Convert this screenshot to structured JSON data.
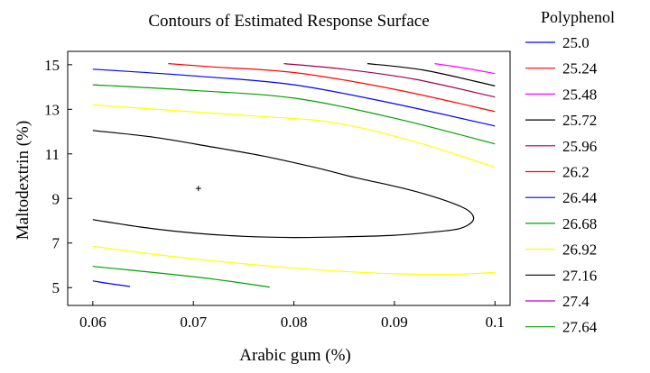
{
  "chart_data": {
    "type": "contour",
    "title": "Contours of Estimated Response Surface",
    "xlabel": "Arabic gum (%)",
    "ylabel": "Maltodextrin (%)",
    "xlim": [
      0.0575,
      0.1015
    ],
    "ylim": [
      4.2,
      15.6
    ],
    "xticks": [
      "0.06",
      "0.07",
      "0.08",
      "0.09",
      "0.1"
    ],
    "xtick_values": [
      0.06,
      0.07,
      0.08,
      0.09,
      0.1
    ],
    "yticks": [
      "5",
      "7",
      "9",
      "11",
      "13",
      "15"
    ],
    "ytick_values": [
      5,
      7,
      9,
      11,
      13,
      15
    ],
    "legend": {
      "title": "Polyphenol",
      "placement": "right",
      "entries": [
        {
          "label": "25.0",
          "color": "#0000ff"
        },
        {
          "label": "25.24",
          "color": "#ff0000"
        },
        {
          "label": "25.48",
          "color": "#ff00ff"
        },
        {
          "label": "25.72",
          "color": "#000000"
        },
        {
          "label": "25.96",
          "color": "#a00050"
        },
        {
          "label": "26.2",
          "color": "#ff0000"
        },
        {
          "label": "26.44",
          "color": "#0000ff"
        },
        {
          "label": "26.68",
          "color": "#00a000"
        },
        {
          "label": "26.92",
          "color": "#ffff00"
        },
        {
          "label": "27.16",
          "color": "#000000"
        },
        {
          "label": "27.4",
          "color": "#c000c0"
        },
        {
          "label": "27.64",
          "color": "#00a000"
        }
      ]
    },
    "contours": [
      {
        "level": 25.0,
        "color": "#0000ff",
        "points": [
          [
            0.06,
            5.3
          ],
          [
            0.0618,
            5.17
          ],
          [
            0.0637,
            5.05
          ]
        ]
      },
      {
        "level": 26.68,
        "color": "#00a000",
        "points": [
          [
            0.06,
            5.95
          ],
          [
            0.066,
            5.68
          ],
          [
            0.072,
            5.38
          ],
          [
            0.0776,
            5.02
          ]
        ]
      },
      {
        "level": 26.92,
        "color": "#ffff00",
        "points": [
          [
            0.06,
            6.85
          ],
          [
            0.066,
            6.5
          ],
          [
            0.072,
            6.2
          ],
          [
            0.078,
            5.95
          ],
          [
            0.084,
            5.75
          ],
          [
            0.09,
            5.62
          ],
          [
            0.096,
            5.6
          ],
          [
            0.1,
            5.68
          ]
        ]
      },
      {
        "level": 27.16,
        "color": "#000000",
        "points": [
          [
            0.06,
            8.05
          ],
          [
            0.065,
            7.7
          ],
          [
            0.07,
            7.45
          ],
          [
            0.075,
            7.3
          ],
          [
            0.08,
            7.25
          ],
          [
            0.085,
            7.28
          ],
          [
            0.09,
            7.35
          ],
          [
            0.094,
            7.5
          ],
          [
            0.0965,
            7.65
          ],
          [
            0.0978,
            8.0
          ],
          [
            0.0975,
            8.4
          ],
          [
            0.096,
            8.75
          ],
          [
            0.093,
            9.2
          ],
          [
            0.09,
            9.55
          ],
          [
            0.086,
            9.95
          ],
          [
            0.082,
            10.4
          ],
          [
            0.077,
            10.9
          ],
          [
            0.072,
            11.3
          ],
          [
            0.066,
            11.75
          ],
          [
            0.06,
            12.05
          ]
        ]
      },
      {
        "level": 26.92,
        "color": "#ffff00",
        "points": [
          [
            0.06,
            13.2
          ],
          [
            0.068,
            12.95
          ],
          [
            0.076,
            12.7
          ],
          [
            0.084,
            12.4
          ],
          [
            0.092,
            11.55
          ],
          [
            0.1,
            10.4
          ]
        ]
      },
      {
        "level": 26.68,
        "color": "#00a000",
        "points": [
          [
            0.06,
            14.1
          ],
          [
            0.07,
            13.85
          ],
          [
            0.08,
            13.5
          ],
          [
            0.09,
            12.6
          ],
          [
            0.1,
            11.45
          ]
        ]
      },
      {
        "level": 26.44,
        "color": "#0000ff",
        "points": [
          [
            0.06,
            14.8
          ],
          [
            0.07,
            14.5
          ],
          [
            0.08,
            14.1
          ],
          [
            0.09,
            13.25
          ],
          [
            0.1,
            12.25
          ]
        ]
      },
      {
        "level": 26.2,
        "color": "#ff0000",
        "points": [
          [
            0.0675,
            15.05
          ],
          [
            0.072,
            14.9
          ],
          [
            0.08,
            14.65
          ],
          [
            0.09,
            13.9
          ],
          [
            0.1,
            12.9
          ]
        ]
      },
      {
        "level": 25.96,
        "color": "#a00050",
        "points": [
          [
            0.079,
            15.05
          ],
          [
            0.085,
            14.8
          ],
          [
            0.092,
            14.35
          ],
          [
            0.1,
            13.55
          ]
        ]
      },
      {
        "level": 25.72,
        "color": "#000000",
        "points": [
          [
            0.0873,
            15.05
          ],
          [
            0.093,
            14.75
          ],
          [
            0.1,
            14.05
          ]
        ]
      },
      {
        "level": 25.48,
        "color": "#ff00ff",
        "points": [
          [
            0.094,
            15.05
          ],
          [
            0.097,
            14.85
          ],
          [
            0.1,
            14.6
          ]
        ]
      }
    ],
    "optimum_marker": {
      "x": 0.0705,
      "y": 9.45
    }
  }
}
